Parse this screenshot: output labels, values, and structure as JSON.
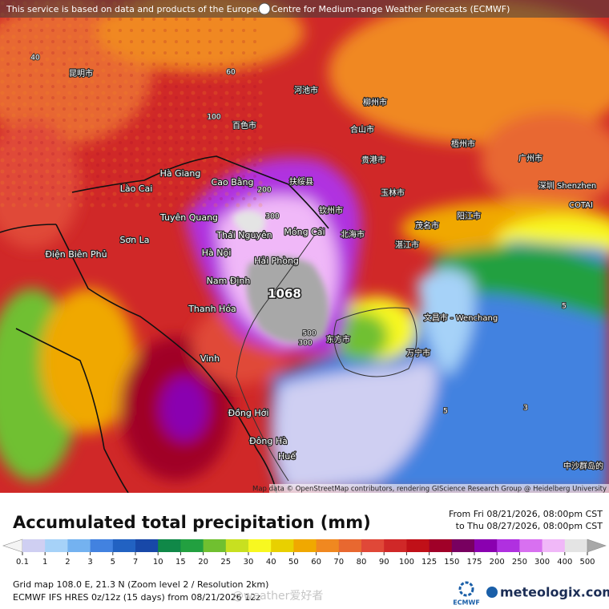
{
  "header": {
    "notice": "This service is based on data and products of the European Centre for Medium-range Weather Forecasts (ECMWF)"
  },
  "map": {
    "places": [
      "Hà Giang",
      "Cao Bằng",
      "Lào Cai",
      "Tuyên Quang",
      "Thái Nguyên",
      "Móng Cái",
      "Sơn La",
      "Điện Biên Phủ",
      "Hà Nội",
      "Hải Phòng",
      "Nam Định",
      "Thanh Hóa",
      "Vinh",
      "Đồng Hới",
      "Đông Hà",
      "Huế",
      "文昌市 - Wenchang",
      "深圳 Shenzhen",
      "COTAI",
      "百色市",
      "扶绥县",
      "钦州市",
      "北海市",
      "湛江市",
      "茂名市",
      "阳江市",
      "玉林市",
      "梧州市",
      "广州市",
      "河池市",
      "柳州市",
      "昆明市",
      "万宁市",
      "东方市",
      "合山市",
      "贵港市",
      "中沙群岛的"
    ],
    "contours": [
      1068,
      300,
      500,
      200,
      300,
      100,
      40,
      60,
      5,
      5,
      3
    ],
    "attribution": "Map data © OpenStreetMap contributors, rendering GIScience Research Group @ Heidelberg University"
  },
  "legend": {
    "title": "Accumulated total precipitation (mm)",
    "from": "From Fri 08/21/2026, 08:00pm CST",
    "to": "to Thu 08/27/2026, 08:00pm CST",
    "ticks": [
      0.1,
      1,
      2,
      3,
      5,
      7,
      10,
      15,
      20,
      25,
      30,
      40,
      50,
      60,
      70,
      80,
      90,
      100,
      125,
      150,
      175,
      200,
      250,
      300,
      400,
      500
    ],
    "colors": [
      "#f4f4f4",
      "#cfcff2",
      "#a6d2f8",
      "#74b2f0",
      "#4282e0",
      "#2262c2",
      "#1848a8",
      "#108848",
      "#22a040",
      "#70c030",
      "#c8e020",
      "#f8f820",
      "#e8d000",
      "#f0a800",
      "#f08820",
      "#e86830",
      "#e04838",
      "#d02828",
      "#c01018",
      "#a00028",
      "#780060",
      "#8a00b0",
      "#b030e0",
      "#d870f0",
      "#f0b8f8",
      "#e4e4e4",
      "#a8a8a8"
    ]
  },
  "footer": {
    "grid": "Grid map 108.0 E, 21.3 N (Zoom level 2 / Resolution 2km)",
    "model": "ECMWF IFS HRES 0z/12z (15 days) from 08/21/2026 12z",
    "watermark": "@weather爱好者",
    "ecmwf": "ECMWF",
    "brand": "meteologix.com"
  }
}
